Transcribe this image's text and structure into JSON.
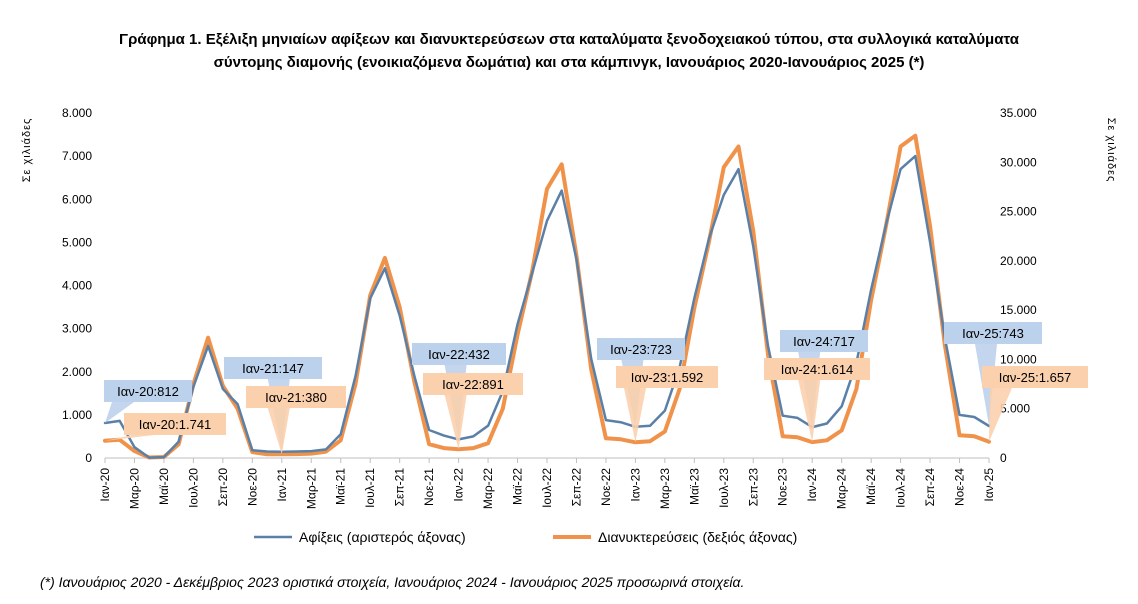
{
  "title": {
    "line1": "Γράφημα 1. Εξέλιξη μηνιαίων αφίξεων και διανυκτερεύσεων στα καταλύματα ξενοδοχειακού τύπου, στα συλλογικά καταλύματα",
    "line2": "σύντομης διαμονής (ενοικιαζόμενα δωμάτια) και στα κάμπινγκ, Ιανουάριος 2020-Ιανουάριος 2025 (*)"
  },
  "footnote": "(*) Ιανουάριος 2020 - Δεκέμβριος 2023 οριστικά στοιχεία, Ιανουάριος 2024 - Ιανουάριος 2025 προσωρινά στοιχεία.",
  "colors": {
    "arrivals": "#5b80a8",
    "nights": "#f0924a",
    "arrivals_callout": "#bcd2ec",
    "nights_callout": "#fbd0ad"
  },
  "chart_data": {
    "type": "line",
    "ylabel_left": "Σε χιλιάδες",
    "ylabel_right": "Σε χιλιάδες",
    "ylim_left": [
      0,
      8000
    ],
    "ylim_right": [
      0,
      35000
    ],
    "yticks_left": [
      "0",
      "1.000",
      "2.000",
      "3.000",
      "4.000",
      "5.000",
      "6.000",
      "7.000",
      "8.000"
    ],
    "yticks_right": [
      "0",
      "5.000",
      "10.000",
      "15.000",
      "20.000",
      "25.000",
      "30.000",
      "35.000"
    ],
    "x_tick_labels": [
      "Ιαν-20",
      "Μαρ-20",
      "Μαϊ-20",
      "Ιουλ-20",
      "Σεπ-20",
      "Νοε-20",
      "Ιαν-21",
      "Μαρ-21",
      "Μαϊ-21",
      "Ιουλ-21",
      "Σεπ-21",
      "Νοε-21",
      "Ιαν-22",
      "Μαρ-22",
      "Μαϊ-22",
      "Ιουλ-22",
      "Σεπ-22",
      "Νοε-22",
      "Ιαν-23",
      "Μαρ-23",
      "Μαϊ-23",
      "Ιουλ-23",
      "Σεπ-23",
      "Νοε-23",
      "Ιαν-24",
      "Μαρ-24",
      "Μαϊ-24",
      "Ιουλ-24",
      "Σεπ-24",
      "Νοε-24",
      "Ιαν-25"
    ],
    "x": [
      "Ιαν-20",
      "Φεβ-20",
      "Μαρ-20",
      "Απρ-20",
      "Μαϊ-20",
      "Ιουν-20",
      "Ιουλ-20",
      "Αυγ-20",
      "Σεπ-20",
      "Οκτ-20",
      "Νοε-20",
      "Δεκ-20",
      "Ιαν-21",
      "Φεβ-21",
      "Μαρ-21",
      "Απρ-21",
      "Μαϊ-21",
      "Ιουν-21",
      "Ιουλ-21",
      "Αυγ-21",
      "Σεπ-21",
      "Οκτ-21",
      "Νοε-21",
      "Δεκ-21",
      "Ιαν-22",
      "Φεβ-22",
      "Μαρ-22",
      "Απρ-22",
      "Μαϊ-22",
      "Ιουν-22",
      "Ιουλ-22",
      "Αυγ-22",
      "Σεπ-22",
      "Οκτ-22",
      "Νοε-22",
      "Δεκ-22",
      "Ιαν-23",
      "Φεβ-23",
      "Μαρ-23",
      "Απρ-23",
      "Μαϊ-23",
      "Ιουν-23",
      "Ιουλ-23",
      "Αυγ-23",
      "Σεπ-23",
      "Οκτ-23",
      "Νοε-23",
      "Δεκ-23",
      "Ιαν-24",
      "Φεβ-24",
      "Μαρ-24",
      "Απρ-24",
      "Μαϊ-24",
      "Ιουν-24",
      "Ιουλ-24",
      "Αυγ-24",
      "Σεπ-24",
      "Οκτ-24",
      "Νοε-24",
      "Δεκ-24",
      "Ιαν-25"
    ],
    "series": [
      {
        "name": "Αφίξεις (αριστερός άξονας)",
        "axis": "left",
        "values": [
          812,
          860,
          250,
          10,
          20,
          380,
          1650,
          2600,
          1600,
          1250,
          180,
          150,
          147,
          150,
          160,
          200,
          550,
          1900,
          3700,
          4400,
          3300,
          1900,
          650,
          520,
          432,
          500,
          750,
          1550,
          3100,
          4300,
          5500,
          6200,
          4600,
          2300,
          880,
          830,
          723,
          750,
          1100,
          2100,
          3700,
          5100,
          6100,
          6700,
          4900,
          2600,
          980,
          930,
          717,
          800,
          1200,
          2200,
          3900,
          5400,
          6700,
          7000,
          5000,
          2800,
          1000,
          950,
          743
        ]
      },
      {
        "name": "Διανυκτερεύσεις (δεξιός άξονας)",
        "axis": "right",
        "values": [
          1741,
          1850,
          700,
          50,
          100,
          1400,
          7500,
          12200,
          7300,
          5000,
          600,
          380,
          380,
          400,
          450,
          650,
          1800,
          7500,
          16500,
          20300,
          15300,
          7700,
          1400,
          1000,
          891,
          1000,
          1500,
          5000,
          12500,
          19000,
          27300,
          29800,
          20500,
          9000,
          2000,
          1900,
          1592,
          1700,
          2700,
          7000,
          15200,
          22000,
          29500,
          31600,
          23000,
          10500,
          2200,
          2100,
          1614,
          1800,
          2800,
          7000,
          16000,
          23500,
          31600,
          32700,
          23500,
          11500,
          2300,
          2200,
          1657
        ]
      }
    ],
    "annotations": [
      {
        "series": 0,
        "text": "Ιαν-20:812"
      },
      {
        "series": 1,
        "text": "Ιαν-20:1.741"
      },
      {
        "series": 0,
        "text": "Ιαν-21:147"
      },
      {
        "series": 1,
        "text": "Ιαν-21:380"
      },
      {
        "series": 0,
        "text": "Ιαν-22:432"
      },
      {
        "series": 1,
        "text": "Ιαν-22:891"
      },
      {
        "series": 0,
        "text": "Ιαν-23:723"
      },
      {
        "series": 1,
        "text": "Ιαν-23:1.592"
      },
      {
        "series": 0,
        "text": "Ιαν-24:717"
      },
      {
        "series": 1,
        "text": "Ιαν-24:1.614"
      },
      {
        "series": 0,
        "text": "Ιαν-25:743"
      },
      {
        "series": 1,
        "text": "Ιαν-25:1.657"
      }
    ],
    "legend": [
      "Αφίξεις (αριστερός άξονας)",
      "Διανυκτερεύσεις (δεξιός άξονας)"
    ],
    "grid": false,
    "legend_position": "bottom"
  }
}
